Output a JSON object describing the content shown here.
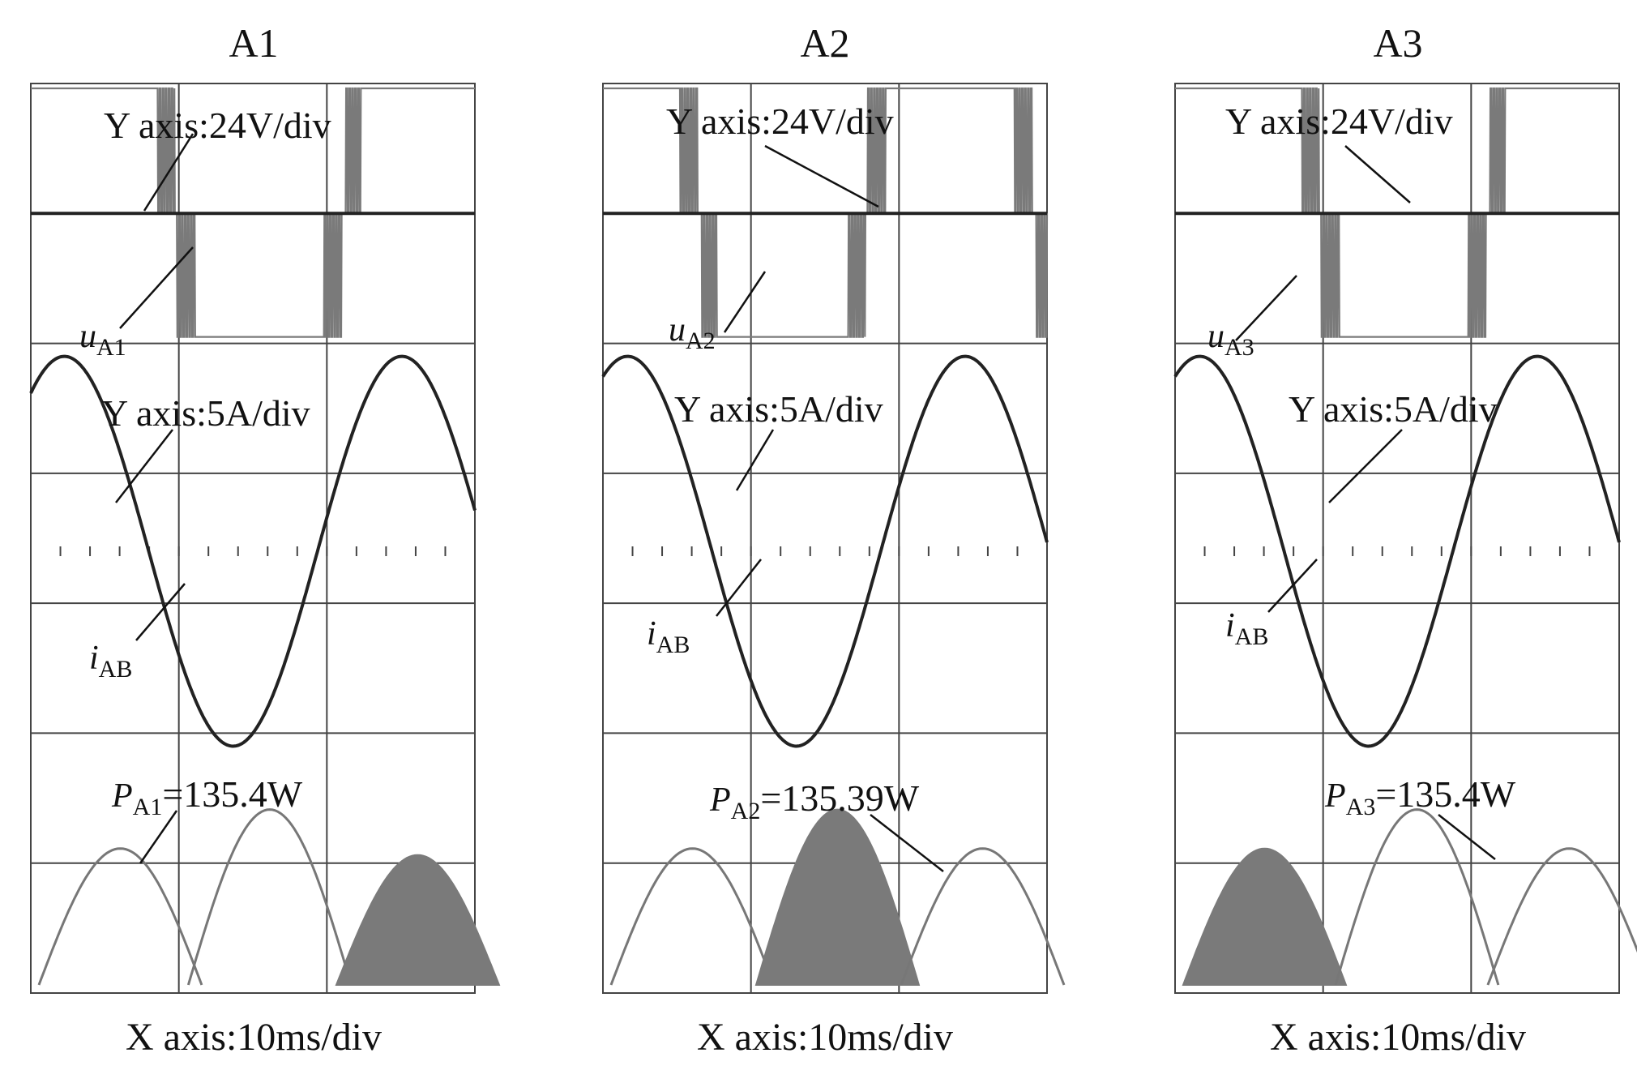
{
  "chart_data": [
    {
      "type": "line",
      "title": "A1",
      "y_annotation_voltage": "Y axis:24V/div",
      "y_annotation_current": "Y axis:5A/div",
      "xlabel": "X axis:10ms/div",
      "voltage_symbol": "u",
      "voltage_subscript": "A1",
      "current_symbol": "i",
      "current_subscript": "AB",
      "power_symbol": "P",
      "power_subscript": "A1",
      "power_value_text": "=135.4W",
      "power_value": 135.4,
      "power_unit": "W",
      "series": [
        {
          "name": "uA1",
          "description": "PWM voltage",
          "pwm_negative_half": "wide-blocks",
          "lobes": [
            -1,
            1,
            -1
          ]
        },
        {
          "name": "iAB",
          "description": "sinusoidal current",
          "phase": 0.55
        },
        {
          "name": "PA1",
          "description": "instantaneous power",
          "hatched_lobe": 2
        }
      ],
      "grid": true,
      "x_divisions": 3,
      "y_divisions": 7
    },
    {
      "type": "line",
      "title": "A2",
      "y_annotation_voltage": "Y axis:24V/div",
      "y_annotation_current": "Y axis:5A/div",
      "xlabel": "X axis:10ms/div",
      "voltage_symbol": "u",
      "voltage_subscript": "A2",
      "current_symbol": "i",
      "current_subscript": "AB",
      "power_symbol": "P",
      "power_subscript": "A2",
      "power_value_text": "=135.39W",
      "power_value": 135.39,
      "power_unit": "W",
      "series": [
        {
          "name": "uA2",
          "description": "PWM voltage"
        },
        {
          "name": "iAB",
          "description": "sinusoidal current",
          "phase": 0.55
        },
        {
          "name": "PA2",
          "description": "instantaneous power",
          "hatched_lobe": 1
        }
      ],
      "grid": true,
      "x_divisions": 3,
      "y_divisions": 7
    },
    {
      "type": "line",
      "title": "A3",
      "y_annotation_voltage": "Y axis:24V/div",
      "y_annotation_current": "Y axis:5A/div",
      "xlabel": "X axis:10ms/div",
      "voltage_symbol": "u",
      "voltage_subscript": "A3",
      "current_symbol": "i",
      "current_subscript": "AB",
      "power_symbol": "P",
      "power_subscript": "A3",
      "power_value_text": "=135.4W",
      "power_value": 135.4,
      "power_unit": "W",
      "series": [
        {
          "name": "uA3",
          "description": "PWM voltage"
        },
        {
          "name": "iAB",
          "description": "sinusoidal current",
          "phase": 0.55
        },
        {
          "name": "PA3",
          "description": "instantaneous power",
          "hatched_lobe": 0
        }
      ],
      "grid": true,
      "x_divisions": 3,
      "y_divisions": 7
    }
  ],
  "colors": {
    "trace": "#222222",
    "power_trace": "#777777",
    "hatch": "#7a7a7a",
    "grid": "#444444"
  }
}
